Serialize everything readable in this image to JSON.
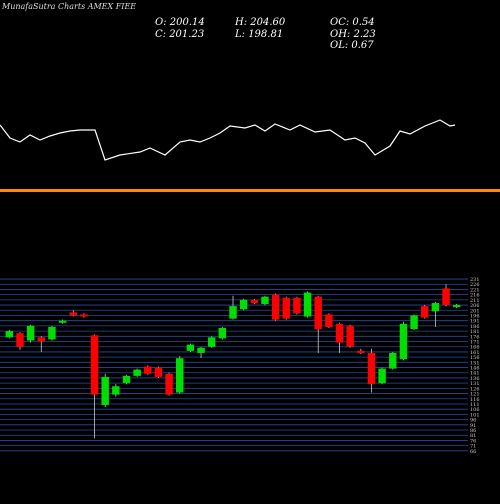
{
  "header": {
    "title": "MunafaSutra Charts AMEX FIEE",
    "stats": [
      "O: 200.14",
      "H: 204.60",
      "OC: 0.54",
      "C: 201.23",
      "L: 198.81",
      "OH: 2.23",
      "OL: 0.67"
    ]
  },
  "chart_data": [
    {
      "type": "line",
      "color": "#ffffff",
      "xlim": [
        0,
        455
      ],
      "ylim": [
        0,
        60
      ],
      "x": [
        0,
        10,
        20,
        30,
        40,
        50,
        60,
        70,
        80,
        95,
        105,
        120,
        140,
        150,
        165,
        180,
        190,
        200,
        210,
        220,
        230,
        245,
        255,
        265,
        275,
        290,
        300,
        315,
        330,
        345,
        355,
        365,
        375,
        390,
        400,
        410,
        425,
        440,
        450,
        455
      ],
      "values": [
        45,
        32,
        28,
        35,
        30,
        34,
        37,
        39,
        40,
        40,
        10,
        15,
        18,
        22,
        15,
        28,
        30,
        28,
        32,
        37,
        44,
        42,
        45,
        39,
        46,
        40,
        45,
        38,
        40,
        30,
        32,
        27,
        15,
        24,
        39,
        36,
        44,
        50,
        44,
        45
      ]
    },
    {
      "type": "candlestick",
      "up_color": "#00dd00",
      "down_color": "#ff0000",
      "wick_color": "#cccccc",
      "ylim": [
        62,
        232
      ],
      "yticks": [
        66,
        71,
        76,
        81,
        86,
        91,
        96,
        101,
        106,
        111,
        116,
        121,
        126,
        131,
        136,
        141,
        146,
        151,
        156,
        161,
        166,
        171,
        176,
        181,
        186,
        191,
        196,
        201,
        206,
        211,
        216,
        221,
        226,
        231
      ],
      "open": [
        175,
        179,
        172,
        175,
        173,
        189,
        199,
        197,
        177,
        110,
        120,
        131,
        138,
        147,
        146,
        140,
        122,
        162,
        160,
        166,
        174,
        193,
        202,
        211,
        207,
        216,
        213,
        213,
        195,
        214,
        197,
        188,
        186,
        162,
        160,
        131,
        145,
        154,
        183,
        205,
        200,
        222,
        204
      ],
      "high": [
        182,
        180,
        187,
        176,
        186,
        192,
        201,
        198,
        178,
        140,
        130,
        139,
        145,
        148,
        147,
        141,
        157,
        169,
        166,
        176,
        185,
        215,
        212,
        212,
        215,
        217,
        214,
        214,
        219,
        215,
        198,
        189,
        187,
        164,
        164,
        146,
        161,
        190,
        197,
        206,
        209,
        226,
        207
      ],
      "low": [
        174,
        163,
        170,
        161,
        172,
        188,
        195,
        194,
        78,
        108,
        118,
        130,
        137,
        139,
        136,
        119,
        121,
        161,
        155,
        165,
        173,
        192,
        201,
        207,
        206,
        191,
        192,
        197,
        194,
        160,
        184,
        160,
        165,
        159,
        122,
        130,
        144,
        153,
        182,
        193,
        185,
        205,
        203
      ],
      "close": [
        181,
        166,
        186,
        171,
        185,
        191,
        196,
        195,
        120,
        137,
        128,
        138,
        144,
        140,
        137,
        120,
        155,
        168,
        165,
        175,
        184,
        205,
        211,
        208,
        214,
        192,
        193,
        198,
        218,
        183,
        185,
        170,
        166,
        160,
        130,
        145,
        160,
        188,
        196,
        194,
        208,
        206,
        206
      ]
    }
  ]
}
